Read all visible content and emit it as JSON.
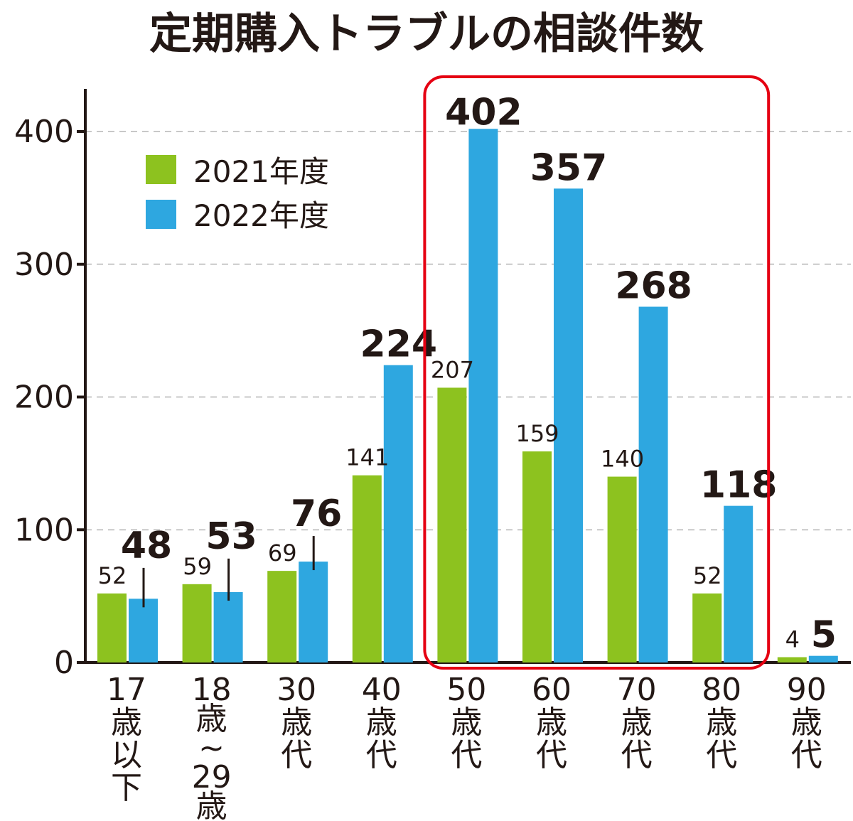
{
  "chart_data": {
    "type": "bar",
    "title": "定期購入トラブルの相談件数",
    "categories": [
      [
        "17",
        "歳",
        "以",
        "下"
      ],
      [
        "18",
        "歳",
        "~",
        "29",
        "歳"
      ],
      [
        "30",
        "歳",
        "代"
      ],
      [
        "40",
        "歳",
        "代"
      ],
      [
        "50",
        "歳",
        "代"
      ],
      [
        "60",
        "歳",
        "代"
      ],
      [
        "70",
        "歳",
        "代"
      ],
      [
        "80",
        "歳",
        "代"
      ],
      [
        "90",
        "歳",
        "代"
      ]
    ],
    "series": [
      {
        "name": "2021年度",
        "color": "#8dc21f",
        "values": [
          52,
          59,
          69,
          141,
          207,
          159,
          140,
          52,
          4
        ]
      },
      {
        "name": "2022年度",
        "color": "#2ea7e0",
        "values": [
          48,
          53,
          76,
          224,
          402,
          357,
          268,
          118,
          5
        ]
      }
    ],
    "ylim": [
      0,
      430
    ],
    "yticks": [
      0,
      100,
      200,
      300,
      400
    ],
    "grid": true,
    "legend": "top-left",
    "highlight": {
      "from_category": 4,
      "to_category": 7,
      "color": "#e50012"
    }
  }
}
